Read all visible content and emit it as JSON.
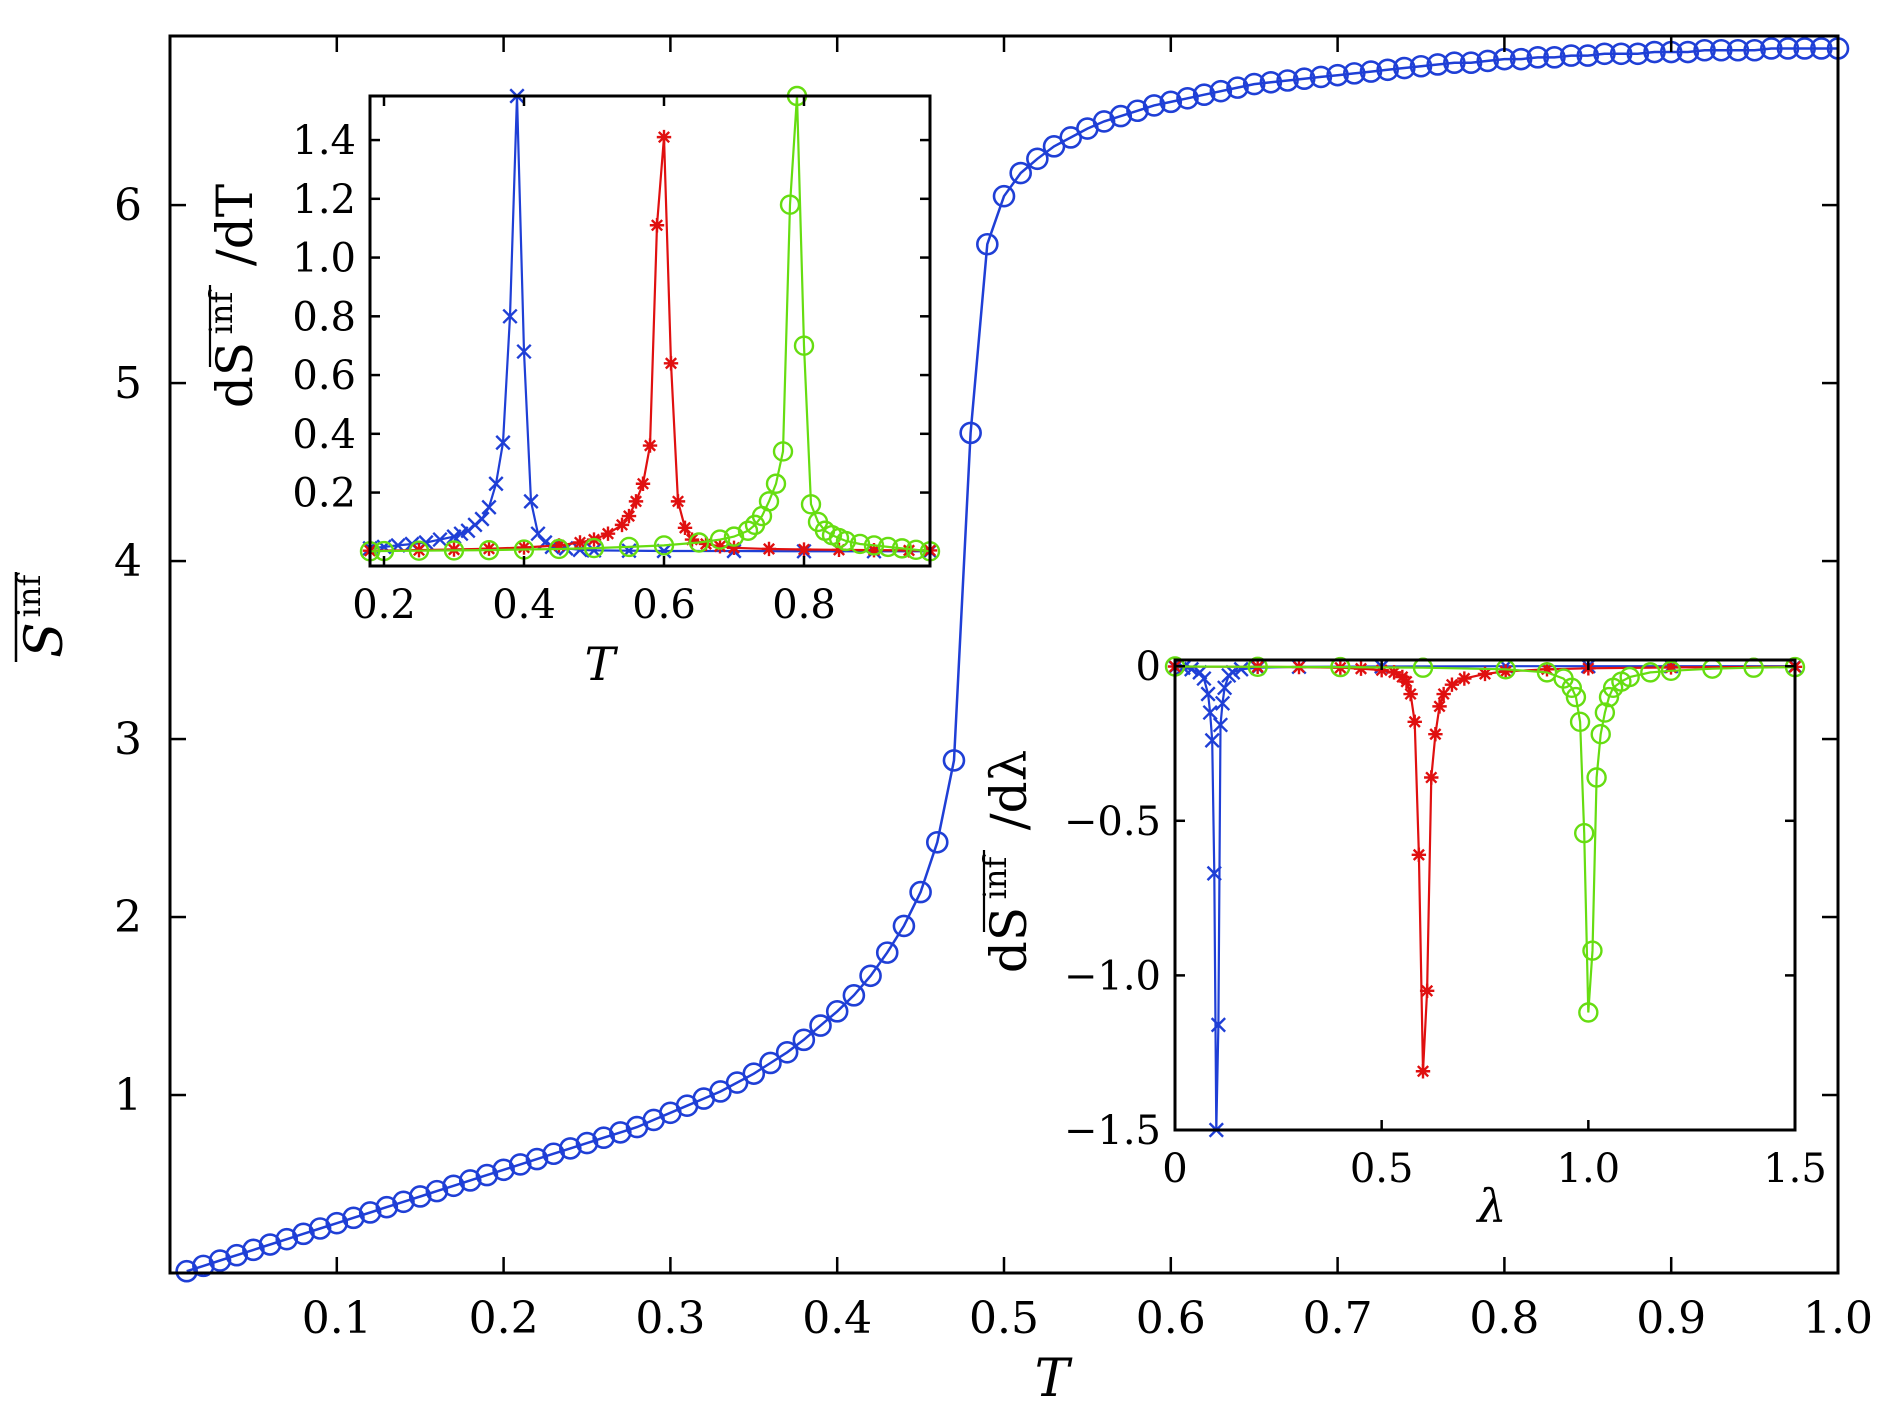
{
  "chart_data": [
    {
      "type": "line",
      "panel": "main",
      "xlabel": "T",
      "ylabel": "S̄inf",
      "ylabel_main": "S",
      "ylabel_sup": "inf",
      "xlim": [
        0.0,
        1.0
      ],
      "ylim": [
        0.0,
        6.95
      ],
      "xticks": [
        "0.1",
        "0.2",
        "0.3",
        "0.4",
        "0.5",
        "0.6",
        "0.7",
        "0.8",
        "0.9",
        "1.0"
      ],
      "yticks": [
        "1",
        "2",
        "3",
        "4",
        "5",
        "6"
      ],
      "series": [
        {
          "color": "#1f3fd6",
          "marker": "circle",
          "x": [
            0.01,
            0.02,
            0.03,
            0.04,
            0.05,
            0.06,
            0.07,
            0.08,
            0.09,
            0.1,
            0.11,
            0.12,
            0.13,
            0.14,
            0.15,
            0.16,
            0.17,
            0.18,
            0.19,
            0.2,
            0.21,
            0.22,
            0.23,
            0.24,
            0.25,
            0.26,
            0.27,
            0.28,
            0.29,
            0.3,
            0.31,
            0.32,
            0.33,
            0.34,
            0.35,
            0.36,
            0.37,
            0.38,
            0.39,
            0.4,
            0.41,
            0.42,
            0.43,
            0.44,
            0.45,
            0.46,
            0.47,
            0.48,
            0.49,
            0.5,
            0.51,
            0.52,
            0.53,
            0.54,
            0.55,
            0.56,
            0.57,
            0.58,
            0.59,
            0.6,
            0.61,
            0.62,
            0.63,
            0.64,
            0.65,
            0.66,
            0.67,
            0.68,
            0.69,
            0.7,
            0.71,
            0.72,
            0.73,
            0.74,
            0.75,
            0.76,
            0.77,
            0.78,
            0.79,
            0.8,
            0.81,
            0.82,
            0.83,
            0.84,
            0.85,
            0.86,
            0.87,
            0.88,
            0.89,
            0.9,
            0.91,
            0.92,
            0.93,
            0.94,
            0.95,
            0.96,
            0.97,
            0.98,
            0.99,
            1.0
          ],
          "y": [
            0.01,
            0.04,
            0.07,
            0.1,
            0.13,
            0.16,
            0.19,
            0.22,
            0.25,
            0.28,
            0.31,
            0.34,
            0.37,
            0.4,
            0.43,
            0.46,
            0.49,
            0.52,
            0.55,
            0.58,
            0.61,
            0.64,
            0.67,
            0.7,
            0.73,
            0.76,
            0.79,
            0.82,
            0.86,
            0.9,
            0.94,
            0.98,
            1.02,
            1.07,
            1.12,
            1.18,
            1.24,
            1.31,
            1.39,
            1.47,
            1.56,
            1.67,
            1.8,
            1.95,
            2.14,
            2.42,
            2.88,
            4.72,
            5.78,
            6.05,
            6.18,
            6.26,
            6.33,
            6.38,
            6.43,
            6.47,
            6.5,
            6.53,
            6.56,
            6.58,
            6.6,
            6.62,
            6.64,
            6.66,
            6.68,
            6.69,
            6.7,
            6.71,
            6.72,
            6.73,
            6.74,
            6.75,
            6.76,
            6.77,
            6.78,
            6.79,
            6.8,
            6.8,
            6.81,
            6.82,
            6.82,
            6.83,
            6.83,
            6.84,
            6.84,
            6.85,
            6.85,
            6.85,
            6.86,
            6.86,
            6.86,
            6.87,
            6.87,
            6.87,
            6.87,
            6.88,
            6.88,
            6.88,
            6.88,
            6.88
          ]
        }
      ]
    },
    {
      "type": "line",
      "panel": "inset-top-left",
      "xlabel": "T",
      "ylabel": "dS̄inf/dT",
      "ylabel_main": "dS",
      "ylabel_sup": "inf",
      "ylabel_tail": "/dT",
      "xlim": [
        0.18,
        0.98
      ],
      "ylim": [
        -0.05,
        1.55
      ],
      "xticks": [
        "0.2",
        "0.4",
        "0.6",
        "0.8"
      ],
      "yticks": [
        "0.2",
        "0.4",
        "0.6",
        "0.8",
        "1.0",
        "1.2",
        "1.4"
      ],
      "series": [
        {
          "color": "#1f3fd6",
          "marker": "x",
          "x": [
            0.18,
            0.2,
            0.22,
            0.24,
            0.26,
            0.28,
            0.3,
            0.31,
            0.32,
            0.33,
            0.34,
            0.35,
            0.36,
            0.37,
            0.38,
            0.39,
            0.4,
            0.41,
            0.42,
            0.43,
            0.44,
            0.46,
            0.48,
            0.5,
            0.55,
            0.6,
            0.7,
            0.8,
            0.9,
            0.98
          ],
          "y": [
            0.01,
            0.015,
            0.02,
            0.025,
            0.03,
            0.04,
            0.05,
            0.06,
            0.07,
            0.09,
            0.11,
            0.15,
            0.23,
            0.37,
            0.8,
            1.55,
            0.68,
            0.17,
            0.06,
            0.03,
            0.015,
            0.01,
            0.005,
            0.003,
            0.002,
            0.001,
            0.001,
            0.0,
            0.0,
            0.0
          ]
        },
        {
          "color": "#e01010",
          "marker": "asterisk",
          "x": [
            0.18,
            0.25,
            0.3,
            0.35,
            0.4,
            0.45,
            0.48,
            0.5,
            0.52,
            0.54,
            0.55,
            0.56,
            0.57,
            0.58,
            0.59,
            0.6,
            0.61,
            0.62,
            0.63,
            0.64,
            0.66,
            0.68,
            0.7,
            0.75,
            0.8,
            0.85,
            0.9,
            0.95,
            0.98
          ],
          "y": [
            0.002,
            0.004,
            0.006,
            0.009,
            0.013,
            0.02,
            0.03,
            0.04,
            0.06,
            0.09,
            0.12,
            0.17,
            0.23,
            0.36,
            1.11,
            1.41,
            0.64,
            0.17,
            0.08,
            0.04,
            0.025,
            0.017,
            0.012,
            0.008,
            0.006,
            0.005,
            0.004,
            0.003,
            0.003
          ]
        },
        {
          "color": "#66dd11",
          "marker": "circle",
          "x": [
            0.18,
            0.2,
            0.25,
            0.3,
            0.35,
            0.4,
            0.45,
            0.5,
            0.55,
            0.6,
            0.65,
            0.68,
            0.7,
            0.72,
            0.73,
            0.74,
            0.75,
            0.76,
            0.77,
            0.78,
            0.79,
            0.8,
            0.81,
            0.82,
            0.83,
            0.84,
            0.85,
            0.86,
            0.88,
            0.9,
            0.92,
            0.94,
            0.96,
            0.98
          ],
          "y": [
            0.0,
            0.001,
            0.002,
            0.003,
            0.004,
            0.006,
            0.008,
            0.011,
            0.015,
            0.02,
            0.03,
            0.04,
            0.05,
            0.07,
            0.09,
            0.12,
            0.17,
            0.23,
            0.34,
            1.18,
            1.55,
            0.7,
            0.16,
            0.1,
            0.07,
            0.055,
            0.045,
            0.035,
            0.025,
            0.02,
            0.015,
            0.01,
            0.005,
            0.0
          ]
        }
      ]
    },
    {
      "type": "line",
      "panel": "inset-bottom-right",
      "xlabel": "λ",
      "ylabel": "dS̄inf/dλ",
      "ylabel_main": "dS",
      "ylabel_sup": "inf",
      "ylabel_tail": "/dλ",
      "xlim": [
        0.0,
        1.5
      ],
      "ylim": [
        -1.5,
        0.02
      ],
      "xticks": [
        "0",
        "0.5",
        "1.0",
        "1.5"
      ],
      "yticks": [
        "0",
        "−0.5",
        "−1.0",
        "−1.5"
      ],
      "series": [
        {
          "color": "#1f3fd6",
          "marker": "x",
          "x": [
            0.0,
            0.02,
            0.04,
            0.06,
            0.07,
            0.08,
            0.085,
            0.09,
            0.095,
            0.1,
            0.105,
            0.11,
            0.115,
            0.12,
            0.13,
            0.14,
            0.16,
            0.2,
            0.3,
            0.5,
            0.8,
            1.0,
            1.2,
            1.5
          ],
          "y": [
            -0.003,
            -0.005,
            -0.01,
            -0.02,
            -0.04,
            -0.09,
            -0.15,
            -0.24,
            -0.67,
            -1.5,
            -1.16,
            -0.19,
            -0.12,
            -0.07,
            -0.03,
            -0.02,
            -0.01,
            -0.005,
            -0.002,
            -0.001,
            0.0,
            0.0,
            0.0,
            0.0
          ]
        },
        {
          "color": "#e01010",
          "marker": "asterisk",
          "x": [
            0.0,
            0.2,
            0.3,
            0.4,
            0.45,
            0.5,
            0.53,
            0.55,
            0.56,
            0.57,
            0.58,
            0.59,
            0.6,
            0.61,
            0.62,
            0.63,
            0.64,
            0.65,
            0.67,
            0.7,
            0.75,
            0.8,
            0.9,
            1.0,
            1.2,
            1.5
          ],
          "y": [
            -0.001,
            -0.002,
            -0.003,
            -0.005,
            -0.008,
            -0.013,
            -0.02,
            -0.035,
            -0.05,
            -0.09,
            -0.18,
            -0.61,
            -1.31,
            -1.05,
            -0.36,
            -0.22,
            -0.13,
            -0.09,
            -0.06,
            -0.04,
            -0.025,
            -0.017,
            -0.01,
            -0.007,
            -0.004,
            -0.002
          ]
        },
        {
          "color": "#66dd11",
          "marker": "circle",
          "x": [
            0.0,
            0.2,
            0.4,
            0.6,
            0.8,
            0.9,
            0.94,
            0.96,
            0.97,
            0.98,
            0.99,
            1.0,
            1.01,
            1.02,
            1.03,
            1.04,
            1.05,
            1.06,
            1.08,
            1.1,
            1.15,
            1.2,
            1.3,
            1.4,
            1.5
          ],
          "y": [
            -0.001,
            -0.002,
            -0.003,
            -0.005,
            -0.01,
            -0.02,
            -0.04,
            -0.07,
            -0.1,
            -0.18,
            -0.54,
            -1.12,
            -0.92,
            -0.36,
            -0.22,
            -0.15,
            -0.1,
            -0.07,
            -0.05,
            -0.035,
            -0.02,
            -0.015,
            -0.008,
            -0.005,
            -0.003
          ]
        }
      ]
    }
  ]
}
